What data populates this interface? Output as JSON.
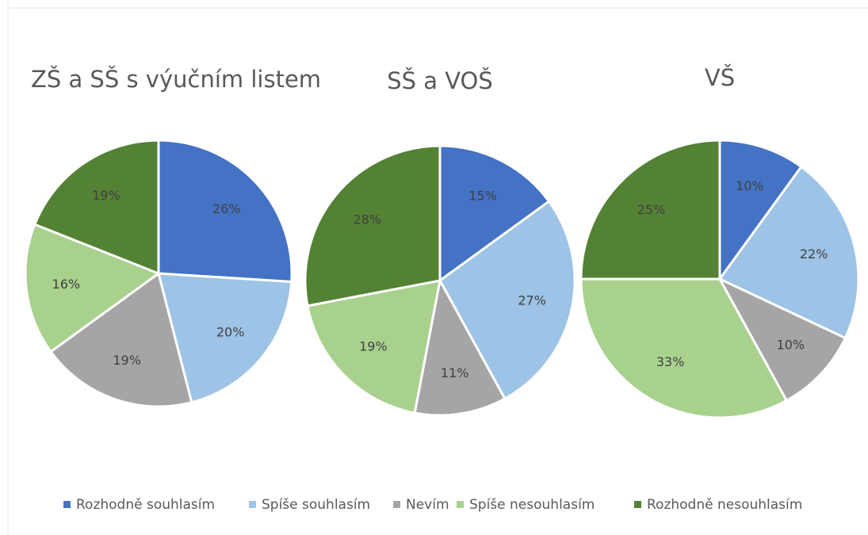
{
  "chart_data": [
    {
      "type": "pie",
      "title": "ZŠ a SŠ s výučním listem",
      "categories": [
        "Rozhodně souhlasím",
        "Spíše souhlasím",
        "Nevím",
        "Spíše nesouhlasím",
        "Rozhodně nesouhlasím"
      ],
      "colors": [
        "#4472c4",
        "#9dc3e6",
        "#a5a5a5",
        "#a9d18e",
        "#548235"
      ],
      "values": [
        26,
        20,
        19,
        16,
        19
      ],
      "value_labels": [
        "26%",
        "20%",
        "19%",
        "16%",
        "19%"
      ]
    },
    {
      "type": "pie",
      "title": "SŠ a VOŠ",
      "values": [
        15,
        27,
        11,
        19,
        28
      ],
      "value_labels": [
        "15%",
        "27%",
        "11%",
        "19%",
        "28%"
      ]
    },
    {
      "type": "pie",
      "title": "VŠ",
      "values": [
        10,
        22,
        10,
        33,
        25
      ],
      "value_labels": [
        "10%",
        "22%",
        "10%",
        "33%",
        "25%"
      ]
    }
  ]
}
